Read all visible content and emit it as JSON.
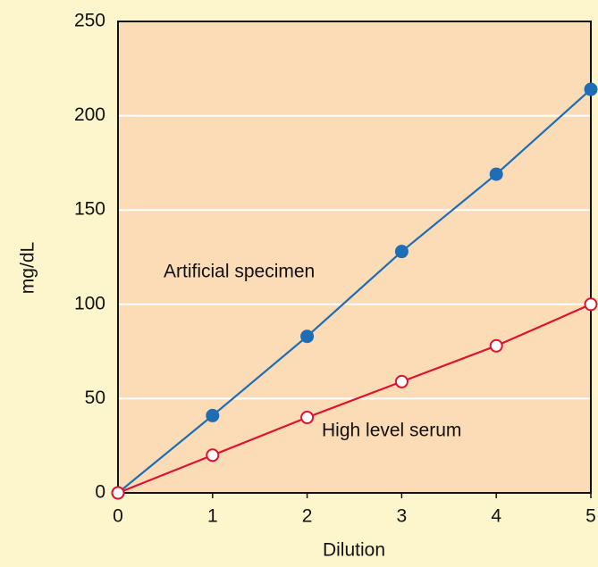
{
  "chart_data": {
    "type": "line",
    "x_label": "Dilution",
    "y_label": "mg/dL",
    "x": [
      0,
      1,
      2,
      3,
      4,
      5
    ],
    "series": [
      {
        "name": "Artificial specimen",
        "color": "#1f6db5",
        "marker": "filled",
        "values": [
          0,
          41,
          83,
          128,
          169,
          214
        ]
      },
      {
        "name": "High level serum",
        "color": "#e0122c",
        "marker": "open",
        "values": [
          0,
          20,
          40,
          59,
          78,
          100
        ]
      }
    ],
    "xlim": [
      0,
      5
    ],
    "xticks": [
      0,
      1,
      2,
      3,
      4,
      5
    ],
    "ylim": [
      0,
      250
    ],
    "yticks": [
      0,
      50,
      100,
      150,
      200,
      250
    ],
    "grid": true,
    "plot_color": "#fbdcb6",
    "background": "#fdf6cc"
  }
}
